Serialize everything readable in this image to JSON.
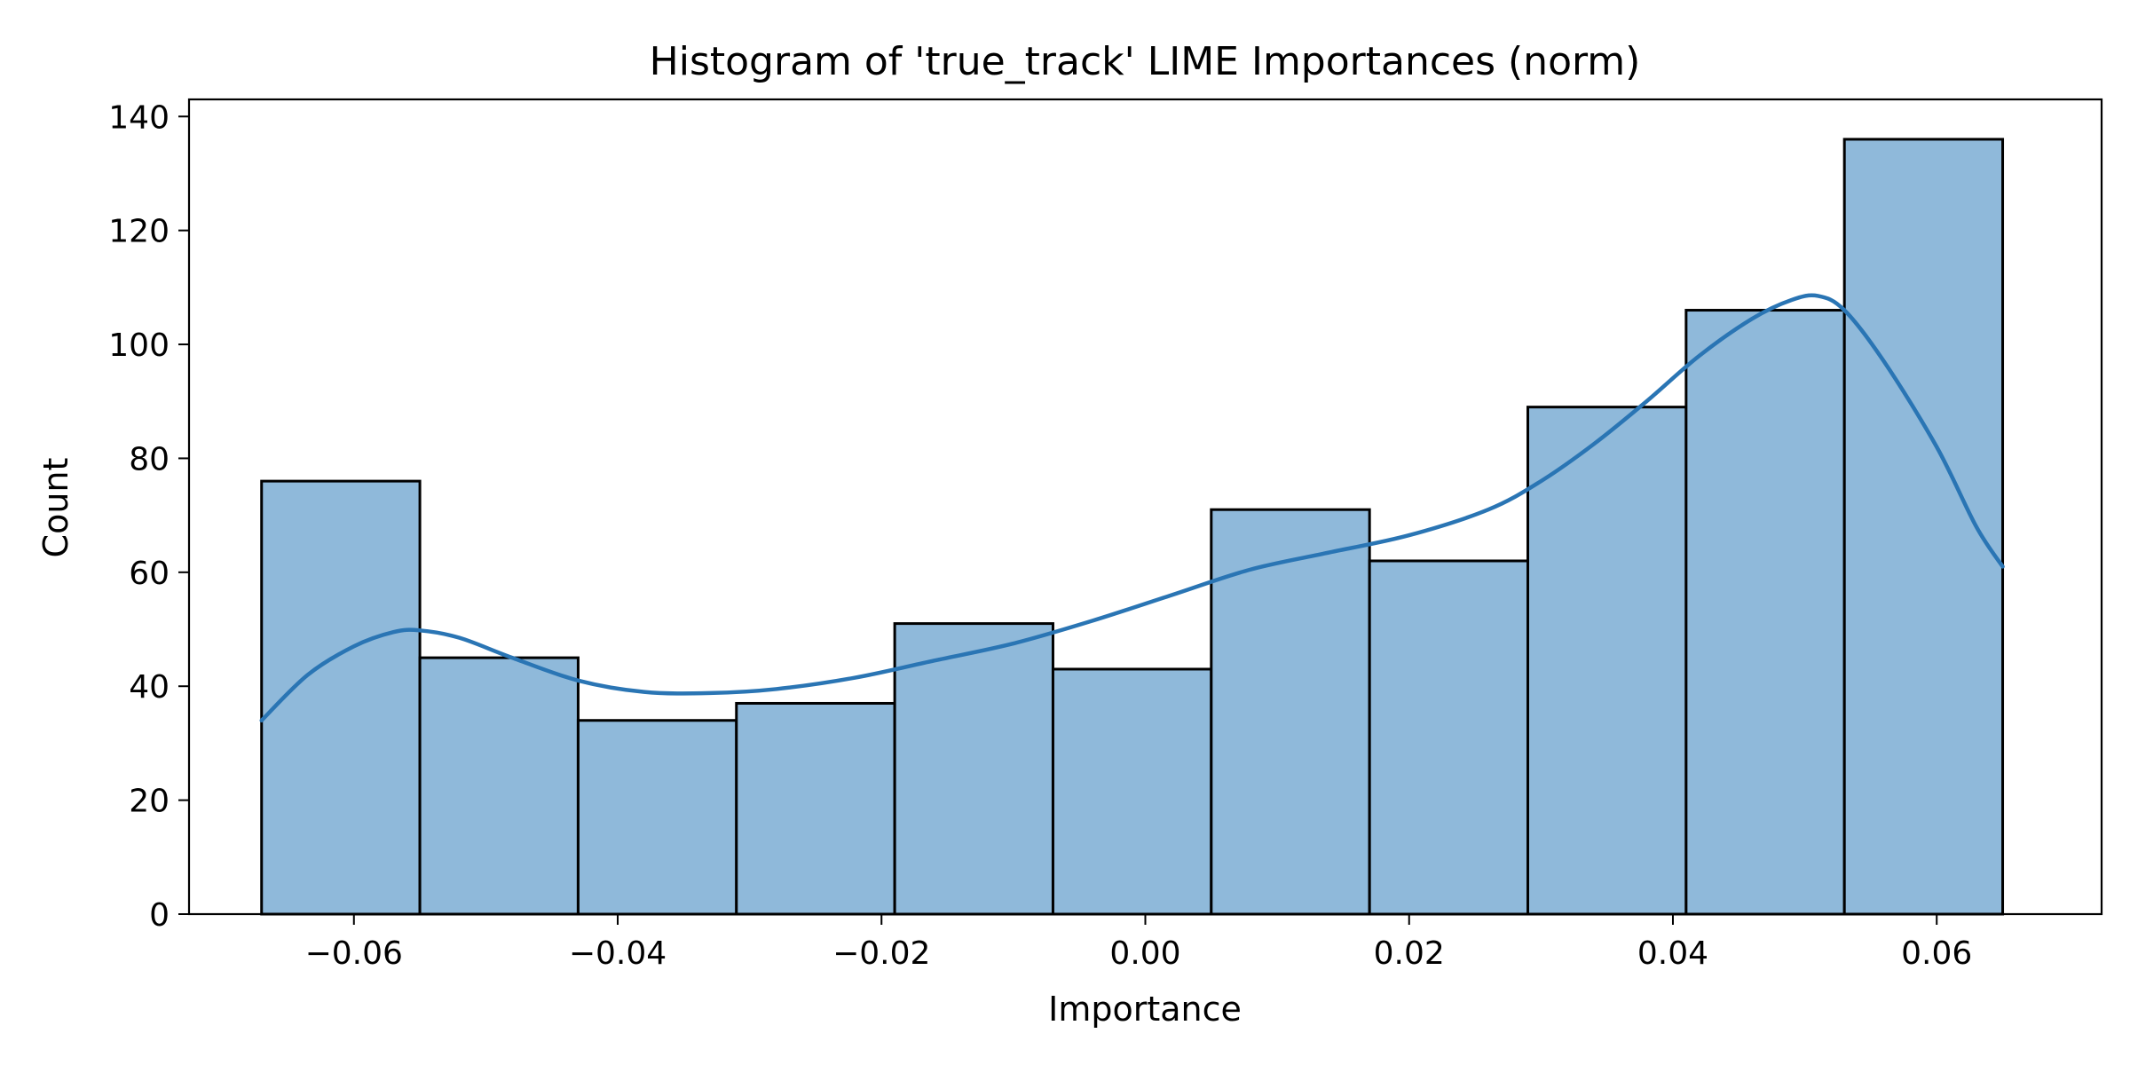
{
  "chart_data": {
    "type": "bar",
    "title": "Histogram of 'true_track' LIME Importances (norm)",
    "xlabel": "Importance",
    "ylabel": "Count",
    "xlim": [
      -0.0725,
      0.0725
    ],
    "ylim": [
      0,
      143
    ],
    "xticks": [
      -0.06,
      -0.04,
      -0.02,
      0.0,
      0.02,
      0.04,
      0.06
    ],
    "xtick_labels": [
      "−0.06",
      "−0.04",
      "−0.02",
      "0.00",
      "0.02",
      "0.04",
      "0.06"
    ],
    "yticks": [
      0,
      20,
      40,
      60,
      80,
      100,
      120,
      140
    ],
    "ytick_labels": [
      "0",
      "20",
      "40",
      "60",
      "80",
      "100",
      "120",
      "140"
    ],
    "bin_edges": [
      -0.067,
      -0.055,
      -0.043,
      -0.031,
      -0.019,
      -0.007,
      0.005,
      0.017,
      0.029,
      0.041,
      0.053,
      0.065
    ],
    "counts": [
      76,
      45,
      34,
      37,
      51,
      43,
      71,
      62,
      89,
      106,
      136
    ],
    "kde": {
      "x": [
        -0.067,
        -0.0635,
        -0.06,
        -0.057,
        -0.055,
        -0.052,
        -0.048,
        -0.043,
        -0.038,
        -0.033,
        -0.028,
        -0.022,
        -0.016,
        -0.01,
        -0.004,
        0.002,
        0.008,
        0.014,
        0.02,
        0.026,
        0.03,
        0.034,
        0.038,
        0.042,
        0.046,
        0.049,
        0.051,
        0.053,
        0.056,
        0.06,
        0.063,
        0.065
      ],
      "y": [
        34,
        42,
        47,
        49.5,
        49.8,
        48.5,
        45,
        41,
        39,
        38.8,
        39.5,
        41.5,
        44.5,
        47.5,
        51.5,
        56,
        60.5,
        63.5,
        66.5,
        71,
        76,
        82.5,
        90,
        98,
        104.5,
        107.8,
        108.5,
        106,
        97,
        82,
        68,
        61
      ]
    },
    "colors": {
      "bar_fill": "#8fb9da",
      "bar_edge": "#000000",
      "kde_line": "#2a75b4"
    },
    "grid": false,
    "legend": "none"
  }
}
